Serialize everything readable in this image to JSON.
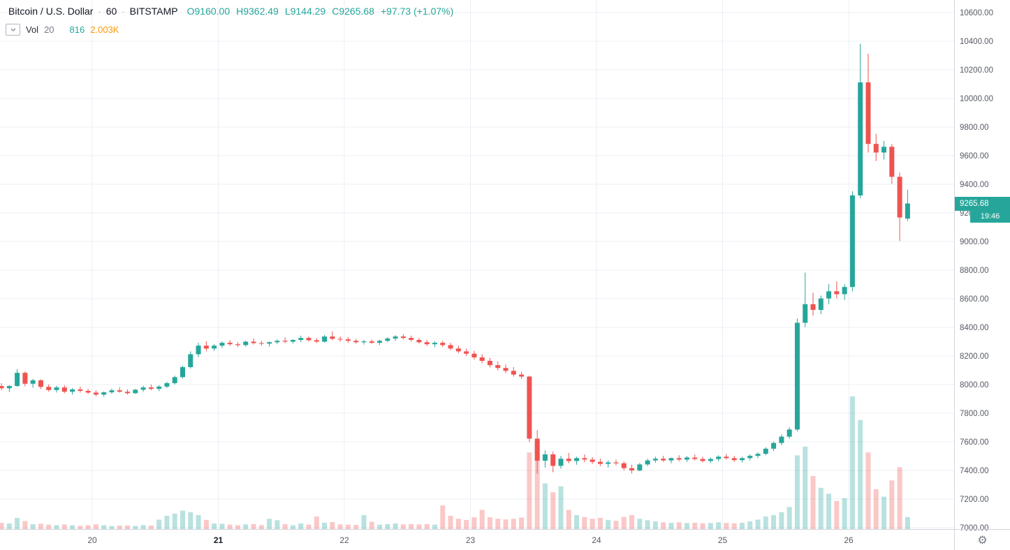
{
  "colors": {
    "up": "#26a69a",
    "down": "#ef5350",
    "vol_up": "rgba(38,166,154,0.32)",
    "vol_down": "rgba(239,83,80,0.32)",
    "grid": "#eceff5",
    "border": "#d1d4dc",
    "axis_text": "#565a64",
    "text_dark": "#131722",
    "ma": "#ff9800",
    "badge_text": "#ffffff"
  },
  "header": {
    "symbol": "Bitcoin / U.S. Dollar",
    "separator": "·",
    "interval": "60",
    "exchange": "BITSTAMP",
    "ohlc": {
      "o": "O9160.00",
      "h": "H9362.49",
      "l": "L9144.29",
      "c": "C9265.68",
      "change": "+97.73 (+1.07%)"
    }
  },
  "indicator": {
    "name": "Vol",
    "length": "20",
    "value": "816",
    "ma": "2.003K"
  },
  "price_axis": {
    "badge": "9265.68",
    "countdown": "19:46",
    "ticks": [
      "10600.00",
      "10400.00",
      "10200.00",
      "10000.00",
      "9800.00",
      "9600.00",
      "9400.00",
      "9200.00",
      "9000.00",
      "8800.00",
      "8600.00",
      "8400.00",
      "8200.00",
      "8000.00",
      "7800.00",
      "7600.00",
      "7400.00",
      "7200.00",
      "7000.00"
    ]
  },
  "time_axis": {
    "labels": [
      {
        "text": "20",
        "day": 20,
        "bold": false
      },
      {
        "text": "21",
        "day": 21,
        "bold": true
      },
      {
        "text": "22",
        "day": 22,
        "bold": false
      },
      {
        "text": "23",
        "day": 23,
        "bold": false
      },
      {
        "text": "24",
        "day": 24,
        "bold": false
      },
      {
        "text": "25",
        "day": 25,
        "bold": false
      },
      {
        "text": "26",
        "day": 26,
        "bold": false
      }
    ]
  },
  "chart_data": {
    "type": "candlestick",
    "interval": "60",
    "x_unit": "day_of_month_fractional",
    "price_axis_top": 10600,
    "price_tick_step": 200,
    "visible_price_range": [
      6990,
      10688
    ],
    "last_price": 9265.68,
    "last_bar_countdown": "19:46",
    "volume": {
      "current": 816,
      "ma20": "2.003K"
    },
    "values_estimated": true,
    "candles": [
      [
        19.28,
        7990,
        8010,
        7962,
        7974,
        420
      ],
      [
        19.3425,
        7974,
        7996,
        7948,
        7990,
        380
      ],
      [
        19.405,
        7990,
        8108,
        7984,
        8082,
        760
      ],
      [
        19.4675,
        8082,
        8092,
        7988,
        8006,
        540
      ],
      [
        19.53,
        8006,
        8040,
        7978,
        8030,
        330
      ],
      [
        19.5925,
        8030,
        8036,
        7968,
        7984,
        360
      ],
      [
        19.655,
        7984,
        8002,
        7950,
        7962,
        300
      ],
      [
        19.7175,
        7962,
        7992,
        7944,
        7980,
        260
      ],
      [
        19.78,
        7980,
        7996,
        7940,
        7950,
        310
      ],
      [
        19.8425,
        7950,
        7976,
        7930,
        7966,
        260
      ],
      [
        19.905,
        7966,
        7986,
        7944,
        7956,
        220
      ],
      [
        19.9675,
        7956,
        7970,
        7934,
        7944,
        260
      ],
      [
        20.03,
        7944,
        7960,
        7918,
        7930,
        320
      ],
      [
        20.0925,
        7930,
        7952,
        7914,
        7946,
        260
      ],
      [
        20.155,
        7946,
        7972,
        7936,
        7960,
        210
      ],
      [
        20.2175,
        7960,
        7980,
        7944,
        7950,
        230
      ],
      [
        20.28,
        7950,
        7966,
        7930,
        7940,
        250
      ],
      [
        20.3425,
        7940,
        7970,
        7934,
        7964,
        210
      ],
      [
        20.405,
        7964,
        7992,
        7950,
        7980,
        270
      ],
      [
        20.4675,
        7980,
        8000,
        7960,
        7970,
        240
      ],
      [
        20.53,
        7970,
        7996,
        7954,
        7986,
        640
      ],
      [
        20.5925,
        7986,
        8020,
        7976,
        8010,
        900
      ],
      [
        20.655,
        8010,
        8062,
        8000,
        8052,
        1050
      ],
      [
        20.7175,
        8052,
        8132,
        8042,
        8122,
        1250
      ],
      [
        20.78,
        8122,
        8232,
        8112,
        8212,
        1150
      ],
      [
        20.8425,
        8212,
        8292,
        8192,
        8272,
        950
      ],
      [
        20.905,
        8272,
        8302,
        8232,
        8252,
        620
      ],
      [
        20.9675,
        8252,
        8282,
        8236,
        8272,
        380
      ],
      [
        21.03,
        8272,
        8302,
        8256,
        8292,
        360
      ],
      [
        21.0925,
        8292,
        8312,
        8270,
        8282,
        300
      ],
      [
        21.155,
        8282,
        8296,
        8262,
        8276,
        260
      ],
      [
        21.2175,
        8276,
        8306,
        8266,
        8300,
        320
      ],
      [
        21.28,
        8300,
        8322,
        8280,
        8290,
        340
      ],
      [
        21.3425,
        8290,
        8306,
        8272,
        8286,
        270
      ],
      [
        21.405,
        8286,
        8302,
        8266,
        8296,
        700
      ],
      [
        21.4675,
        8296,
        8316,
        8282,
        8306,
        600
      ],
      [
        21.53,
        8306,
        8330,
        8290,
        8300,
        330
      ],
      [
        21.5925,
        8300,
        8316,
        8286,
        8312,
        260
      ],
      [
        21.655,
        8312,
        8342,
        8296,
        8326,
        380
      ],
      [
        21.7175,
        8326,
        8336,
        8300,
        8310,
        300
      ],
      [
        21.78,
        8310,
        8326,
        8290,
        8300,
        850
      ],
      [
        21.8425,
        8300,
        8346,
        8294,
        8336,
        430
      ],
      [
        21.905,
        8336,
        8372,
        8310,
        8320,
        480
      ],
      [
        21.9675,
        8320,
        8336,
        8300,
        8316,
        320
      ],
      [
        22.03,
        8316,
        8330,
        8294,
        8306,
        300
      ],
      [
        22.0925,
        8306,
        8320,
        8286,
        8296,
        280
      ],
      [
        22.155,
        8296,
        8312,
        8280,
        8302,
        950
      ],
      [
        22.2175,
        8302,
        8316,
        8286,
        8292,
        500
      ],
      [
        22.28,
        8292,
        8312,
        8276,
        8306,
        300
      ],
      [
        22.3425,
        8306,
        8332,
        8296,
        8322,
        340
      ],
      [
        22.405,
        8322,
        8346,
        8306,
        8336,
        380
      ],
      [
        22.4675,
        8336,
        8352,
        8316,
        8326,
        320
      ],
      [
        22.53,
        8326,
        8342,
        8300,
        8312,
        340
      ],
      [
        22.5925,
        8312,
        8326,
        8286,
        8296,
        320
      ],
      [
        22.655,
        8296,
        8312,
        8270,
        8282,
        340
      ],
      [
        22.7175,
        8282,
        8302,
        8262,
        8292,
        300
      ],
      [
        22.78,
        8292,
        8306,
        8264,
        8276,
        1600
      ],
      [
        22.8425,
        8276,
        8292,
        8240,
        8252,
        900
      ],
      [
        22.905,
        8252,
        8272,
        8220,
        8232,
        700
      ],
      [
        22.9675,
        8232,
        8252,
        8200,
        8216,
        620
      ],
      [
        23.03,
        8216,
        8236,
        8176,
        8190,
        800
      ],
      [
        23.0925,
        8190,
        8212,
        8150,
        8166,
        1300
      ],
      [
        23.155,
        8166,
        8186,
        8120,
        8136,
        800
      ],
      [
        23.2175,
        8136,
        8162,
        8100,
        8116,
        700
      ],
      [
        23.28,
        8116,
        8140,
        8080,
        8096,
        650
      ],
      [
        23.3425,
        8096,
        8122,
        8056,
        8070,
        700
      ],
      [
        23.405,
        8070,
        8090,
        8040,
        8056,
        780
      ],
      [
        23.4675,
        8056,
        8062,
        7598,
        7622,
        5200
      ],
      [
        23.53,
        7622,
        7682,
        7378,
        7468,
        5900
      ],
      [
        23.5925,
        7468,
        7540,
        7420,
        7512,
        3100
      ],
      [
        23.655,
        7512,
        7532,
        7388,
        7432,
        2500
      ],
      [
        23.7175,
        7432,
        7502,
        7412,
        7482,
        2900
      ],
      [
        23.78,
        7482,
        7522,
        7450,
        7466,
        1300
      ],
      [
        23.8425,
        7466,
        7496,
        7440,
        7486,
        950
      ],
      [
        23.905,
        7486,
        7512,
        7458,
        7476,
        820
      ],
      [
        23.9675,
        7476,
        7492,
        7446,
        7460,
        700
      ],
      [
        24.03,
        7460,
        7482,
        7430,
        7446,
        760
      ],
      [
        24.0925,
        7446,
        7470,
        7420,
        7456,
        620
      ],
      [
        24.155,
        7456,
        7476,
        7436,
        7450,
        560
      ],
      [
        24.2175,
        7450,
        7462,
        7400,
        7416,
        820
      ],
      [
        24.28,
        7416,
        7440,
        7378,
        7400,
        950
      ],
      [
        24.3425,
        7400,
        7452,
        7394,
        7442,
        700
      ],
      [
        24.405,
        7442,
        7482,
        7430,
        7470,
        600
      ],
      [
        24.4675,
        7470,
        7496,
        7454,
        7482,
        520
      ],
      [
        24.53,
        7482,
        7502,
        7460,
        7470,
        460
      ],
      [
        24.5925,
        7470,
        7490,
        7450,
        7486,
        420
      ],
      [
        24.655,
        7486,
        7506,
        7464,
        7476,
        460
      ],
      [
        24.7175,
        7476,
        7500,
        7460,
        7490,
        410
      ],
      [
        24.78,
        7490,
        7512,
        7470,
        7480,
        430
      ],
      [
        24.8425,
        7480,
        7496,
        7456,
        7466,
        390
      ],
      [
        24.905,
        7466,
        7490,
        7450,
        7480,
        410
      ],
      [
        24.9675,
        7480,
        7506,
        7464,
        7496,
        460
      ],
      [
        25.03,
        7496,
        7516,
        7476,
        7486,
        410
      ],
      [
        25.0925,
        7486,
        7502,
        7460,
        7472,
        390
      ],
      [
        25.155,
        7472,
        7496,
        7456,
        7486,
        430
      ],
      [
        25.2175,
        7486,
        7512,
        7470,
        7502,
        520
      ],
      [
        25.28,
        7502,
        7526,
        7486,
        7516,
        640
      ],
      [
        25.3425,
        7516,
        7562,
        7506,
        7552,
        850
      ],
      [
        25.405,
        7552,
        7602,
        7536,
        7592,
        950
      ],
      [
        25.4675,
        7592,
        7652,
        7576,
        7636,
        1150
      ],
      [
        25.53,
        7636,
        7702,
        7622,
        7686,
        1500
      ],
      [
        25.5925,
        7686,
        8462,
        7672,
        8432,
        5000
      ],
      [
        25.655,
        8432,
        8782,
        8402,
        8562,
        5600
      ],
      [
        25.7175,
        8562,
        8642,
        8482,
        8522,
        3600
      ],
      [
        25.78,
        8522,
        8622,
        8492,
        8602,
        2800
      ],
      [
        25.8425,
        8602,
        8702,
        8562,
        8652,
        2400
      ],
      [
        25.905,
        8652,
        8722,
        8602,
        8632,
        1900
      ],
      [
        25.9675,
        8632,
        8702,
        8592,
        8682,
        2100
      ],
      [
        26.03,
        8682,
        9352,
        8652,
        9322,
        9000
      ],
      [
        26.0925,
        9322,
        10382,
        9302,
        10112,
        7400
      ],
      [
        26.155,
        10112,
        10312,
        9622,
        9682,
        5200
      ],
      [
        26.2175,
        9682,
        9752,
        9562,
        9622,
        2700
      ],
      [
        26.28,
        9622,
        9702,
        9572,
        9662,
        2200
      ],
      [
        26.3425,
        9662,
        9682,
        9402,
        9452,
        3300
      ],
      [
        26.405,
        9452,
        9482,
        9004,
        9168,
        4200
      ],
      [
        26.4675,
        9160,
        9362.49,
        9144.29,
        9265.68,
        816
      ]
    ]
  }
}
